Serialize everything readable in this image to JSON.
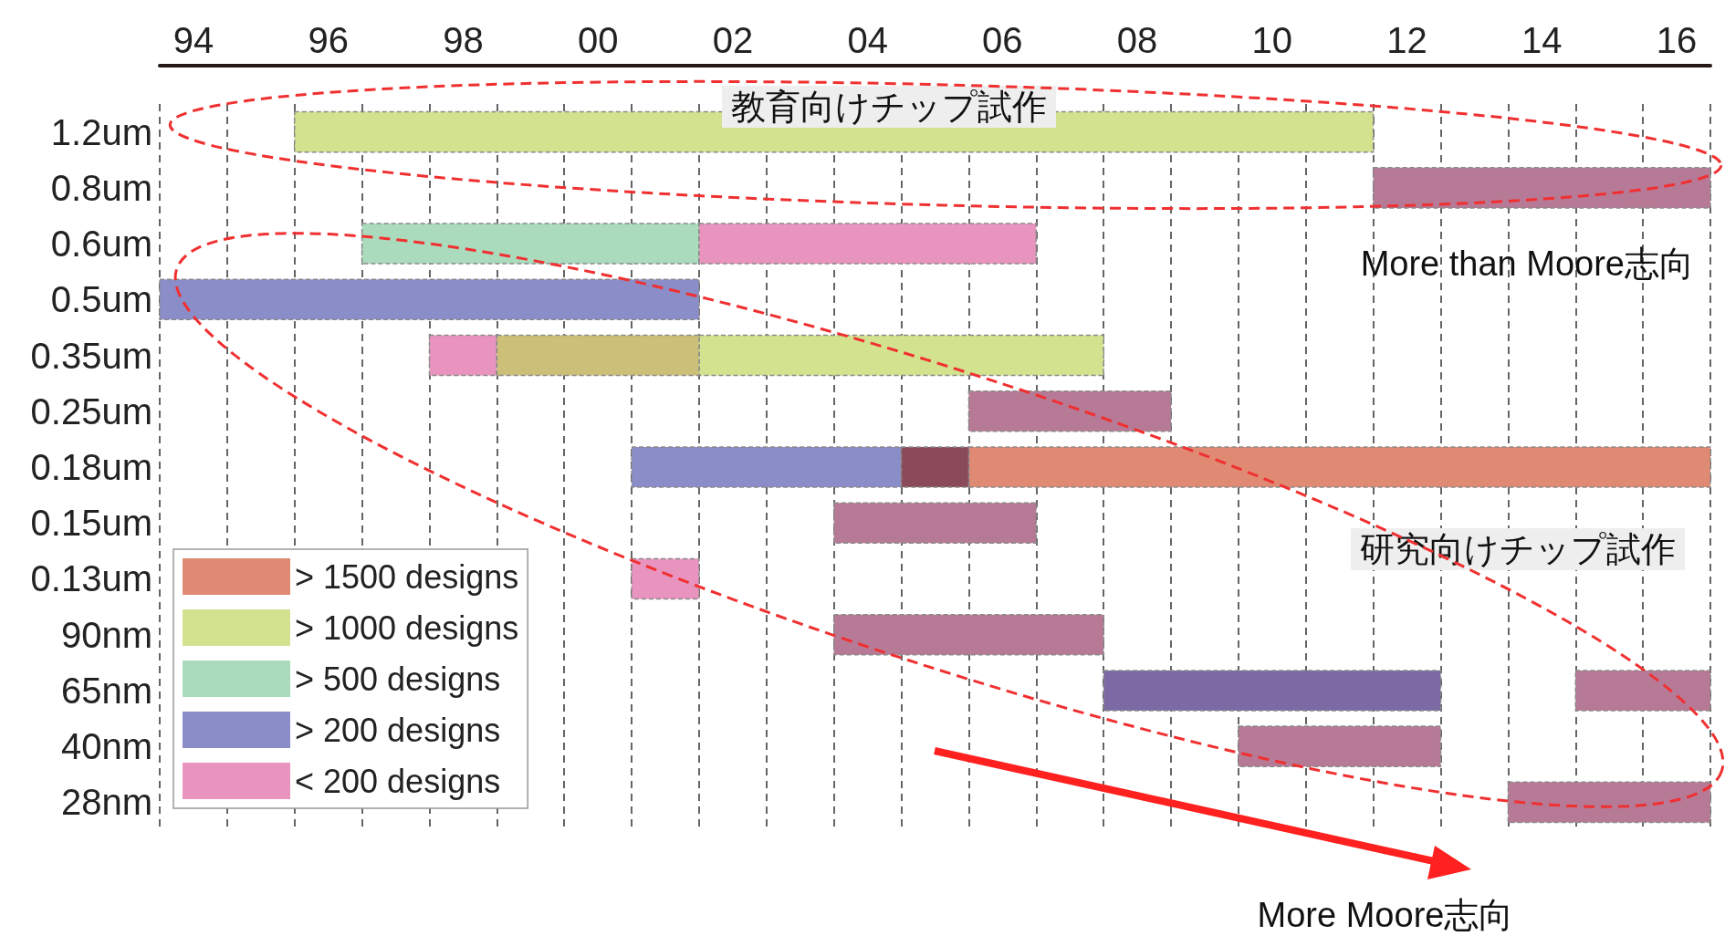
{
  "chart_data": {
    "type": "bar",
    "orientation": "horizontal",
    "categories": [
      "1.2um",
      "0.8um",
      "0.6um",
      "0.5um",
      "0.35um",
      "0.25um",
      "0.18um",
      "0.15um",
      "0.13um",
      "90nm",
      "65nm",
      "40nm",
      "28nm"
    ],
    "series": [
      {
        "name": "> 1500 designs",
        "color": "#e08a74",
        "base": [
          null,
          null,
          null,
          null,
          null,
          null,
          2005.5,
          null,
          null,
          null,
          null,
          null,
          null
        ],
        "values": [
          null,
          null,
          null,
          null,
          null,
          null,
          11,
          null,
          null,
          null,
          null,
          null,
          null
        ]
      },
      {
        "name": "> 1000 designs",
        "color": "#d3e28f",
        "base": [
          1995.5,
          null,
          null,
          null,
          2001.5,
          null,
          null,
          null,
          null,
          null,
          null,
          null,
          null
        ],
        "values": [
          16,
          null,
          null,
          null,
          6,
          null,
          null,
          null,
          null,
          null,
          null,
          null,
          null
        ]
      },
      {
        "name": "> 500 designs",
        "color": "#aadbbd",
        "base": [
          null,
          null,
          1996.5,
          null,
          null,
          null,
          null,
          null,
          null,
          null,
          null,
          null,
          null
        ],
        "values": [
          null,
          null,
          5,
          null,
          null,
          null,
          null,
          null,
          null,
          null,
          null,
          null,
          null
        ]
      },
      {
        "name": "> 200 designs",
        "color": "#8a8dc8",
        "base": [
          null,
          null,
          null,
          1993.5,
          null,
          null,
          2000.5,
          null,
          null,
          null,
          null,
          null,
          null
        ],
        "values": [
          null,
          null,
          null,
          8,
          null,
          null,
          4,
          null,
          null,
          null,
          null,
          null,
          null
        ]
      },
      {
        "name": "< 200 designs",
        "color": "#e894bf",
        "base": [
          null,
          null,
          2001.5,
          null,
          1997.5,
          null,
          null,
          null,
          2000.5,
          null,
          null,
          null,
          null
        ],
        "values": [
          null,
          null,
          5,
          null,
          1,
          null,
          null,
          null,
          1,
          null,
          null,
          null,
          null
        ]
      },
      {
        "color": "#b77a96",
        "base": [
          null,
          2011.5,
          null,
          null,
          null,
          2005.5,
          null,
          2003.5,
          null,
          2003.5,
          2014.5,
          2009.5,
          2013.5
        ],
        "values": [
          null,
          5,
          null,
          null,
          null,
          3,
          null,
          3,
          null,
          4,
          2,
          3,
          3
        ]
      },
      {
        "color": "#ccc079",
        "base": [
          null,
          null,
          null,
          null,
          1998.5,
          null,
          null,
          null,
          null,
          null,
          null,
          null,
          null
        ],
        "values": [
          null,
          null,
          null,
          null,
          3,
          null,
          null,
          null,
          null,
          null,
          null,
          null,
          null
        ]
      },
      {
        "color": "#8b4a5a",
        "base": [
          null,
          null,
          null,
          null,
          null,
          null,
          2004.5,
          null,
          null,
          null,
          null,
          null,
          null
        ],
        "values": [
          null,
          null,
          null,
          null,
          null,
          null,
          1,
          null,
          null,
          null,
          null,
          null,
          null
        ]
      },
      {
        "color": "#7c6aa4",
        "base": [
          null,
          null,
          null,
          null,
          null,
          null,
          null,
          null,
          null,
          null,
          2007.5,
          null,
          null
        ],
        "values": [
          null,
          null,
          null,
          null,
          null,
          null,
          null,
          null,
          null,
          null,
          5,
          null,
          null
        ]
      }
    ],
    "xlim": [
      1993.5,
      2016.5
    ],
    "xticks": [
      {
        "value": 1994,
        "label": "94"
      },
      {
        "value": 1996,
        "label": "96"
      },
      {
        "value": 1998,
        "label": "98"
      },
      {
        "value": 2000,
        "label": "00"
      },
      {
        "value": 2002,
        "label": "02"
      },
      {
        "value": 2004,
        "label": "04"
      },
      {
        "value": 2006,
        "label": "06"
      },
      {
        "value": 2008,
        "label": "08"
      },
      {
        "value": 2010,
        "label": "10"
      },
      {
        "value": 2012,
        "label": "12"
      },
      {
        "value": 2014,
        "label": "14"
      },
      {
        "value": 2016,
        "label": "16"
      },
      {
        "value": 1993.5,
        "label": null
      },
      {
        "value": 1994.5,
        "label": null
      },
      {
        "value": 1995.5,
        "label": null
      },
      {
        "value": 1996.5,
        "label": null
      },
      {
        "value": 1997.5,
        "label": null
      },
      {
        "value": 1998.5,
        "label": null
      },
      {
        "value": 1999.5,
        "label": null
      },
      {
        "value": 2000.5,
        "label": null
      },
      {
        "value": 2001.5,
        "label": null
      },
      {
        "value": 2002.5,
        "label": null
      },
      {
        "value": 2003.5,
        "label": null
      },
      {
        "value": 2004.5,
        "label": null
      },
      {
        "value": 2005.5,
        "label": null
      },
      {
        "value": 2006.5,
        "label": null
      },
      {
        "value": 2007.5,
        "label": null
      },
      {
        "value": 2008.5,
        "label": null
      },
      {
        "value": 2009.5,
        "label": null
      },
      {
        "value": 2010.5,
        "label": null
      },
      {
        "value": 2011.5,
        "label": null
      },
      {
        "value": 2012.5,
        "label": null
      },
      {
        "value": 2013.5,
        "label": null
      },
      {
        "value": 2014.5,
        "label": null
      },
      {
        "value": 2015.5,
        "label": null
      },
      {
        "value": 2016.5,
        "label": null
      }
    ],
    "grid": "x",
    "legend": "bottom left",
    "annotations": [
      "教育向けチップ試作",
      "More than Moore志向",
      "研究向けチップ試作",
      "More Moore志向"
    ]
  }
}
